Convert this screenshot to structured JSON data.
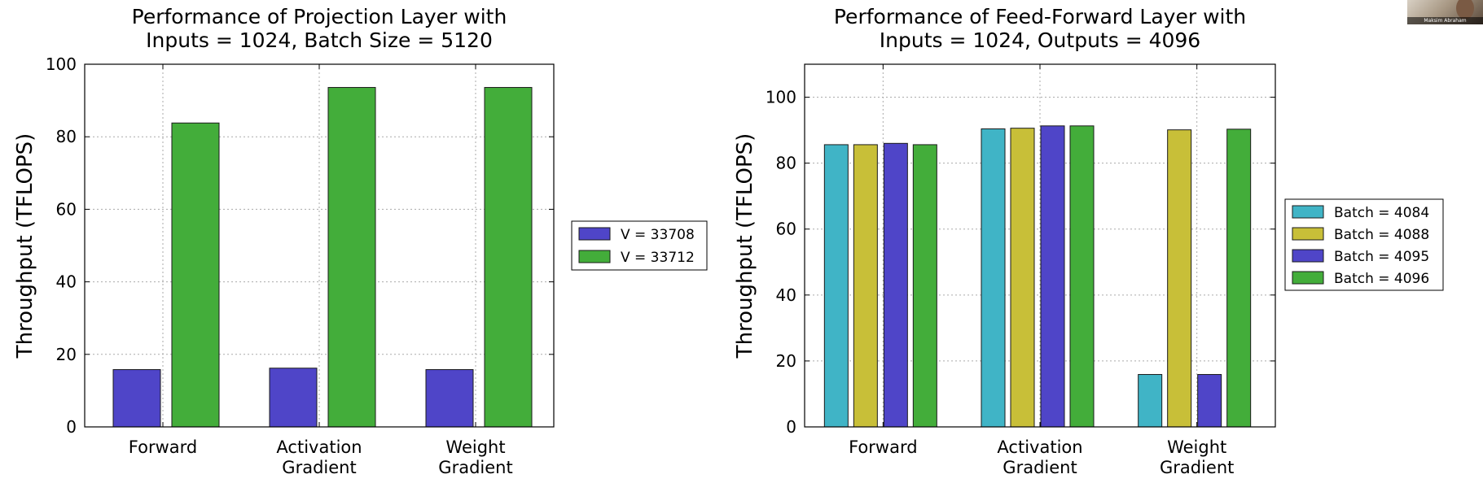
{
  "presenter": {
    "name": "Maksim Abraham"
  },
  "chart_data": [
    {
      "type": "bar",
      "title": [
        "Performance of Projection Layer with",
        "Inputs = 1024, Batch Size = 5120"
      ],
      "xlabel": "",
      "ylabel": "Throughput (TFLOPS)",
      "ylim": [
        0,
        100
      ],
      "yticks": [
        0,
        20,
        40,
        60,
        80,
        100
      ],
      "grid": true,
      "legend_position": "right",
      "categories": [
        [
          "Forward"
        ],
        [
          "Activation",
          "Gradient"
        ],
        [
          "Weight",
          "Gradient"
        ]
      ],
      "series": [
        {
          "name": "V = 33708",
          "color": "#4f45c8",
          "values": [
            15.8,
            16.2,
            15.8
          ]
        },
        {
          "name": "V = 33712",
          "color": "#43ad3a",
          "values": [
            83.8,
            93.6,
            93.6
          ]
        }
      ]
    },
    {
      "type": "bar",
      "title": [
        "Performance of Feed-Forward Layer with",
        "Inputs = 1024, Outputs = 4096"
      ],
      "xlabel": "",
      "ylabel": "Throughput (TFLOPS)",
      "ylim": [
        0,
        110
      ],
      "yticks": [
        0,
        20,
        40,
        60,
        80,
        100
      ],
      "grid": true,
      "legend_position": "right",
      "categories": [
        [
          "Forward"
        ],
        [
          "Activation",
          "Gradient"
        ],
        [
          "Weight",
          "Gradient"
        ]
      ],
      "series": [
        {
          "name": "Batch = 4084",
          "color": "#40b4c6",
          "values": [
            85.6,
            90.4,
            15.9
          ]
        },
        {
          "name": "Batch = 4088",
          "color": "#c8bf38",
          "values": [
            85.6,
            90.6,
            90.1
          ]
        },
        {
          "name": "Batch = 4095",
          "color": "#4f45c8",
          "values": [
            86.0,
            91.3,
            15.9
          ]
        },
        {
          "name": "Batch = 4096",
          "color": "#43ad3a",
          "values": [
            85.6,
            91.3,
            90.3
          ]
        }
      ]
    }
  ]
}
